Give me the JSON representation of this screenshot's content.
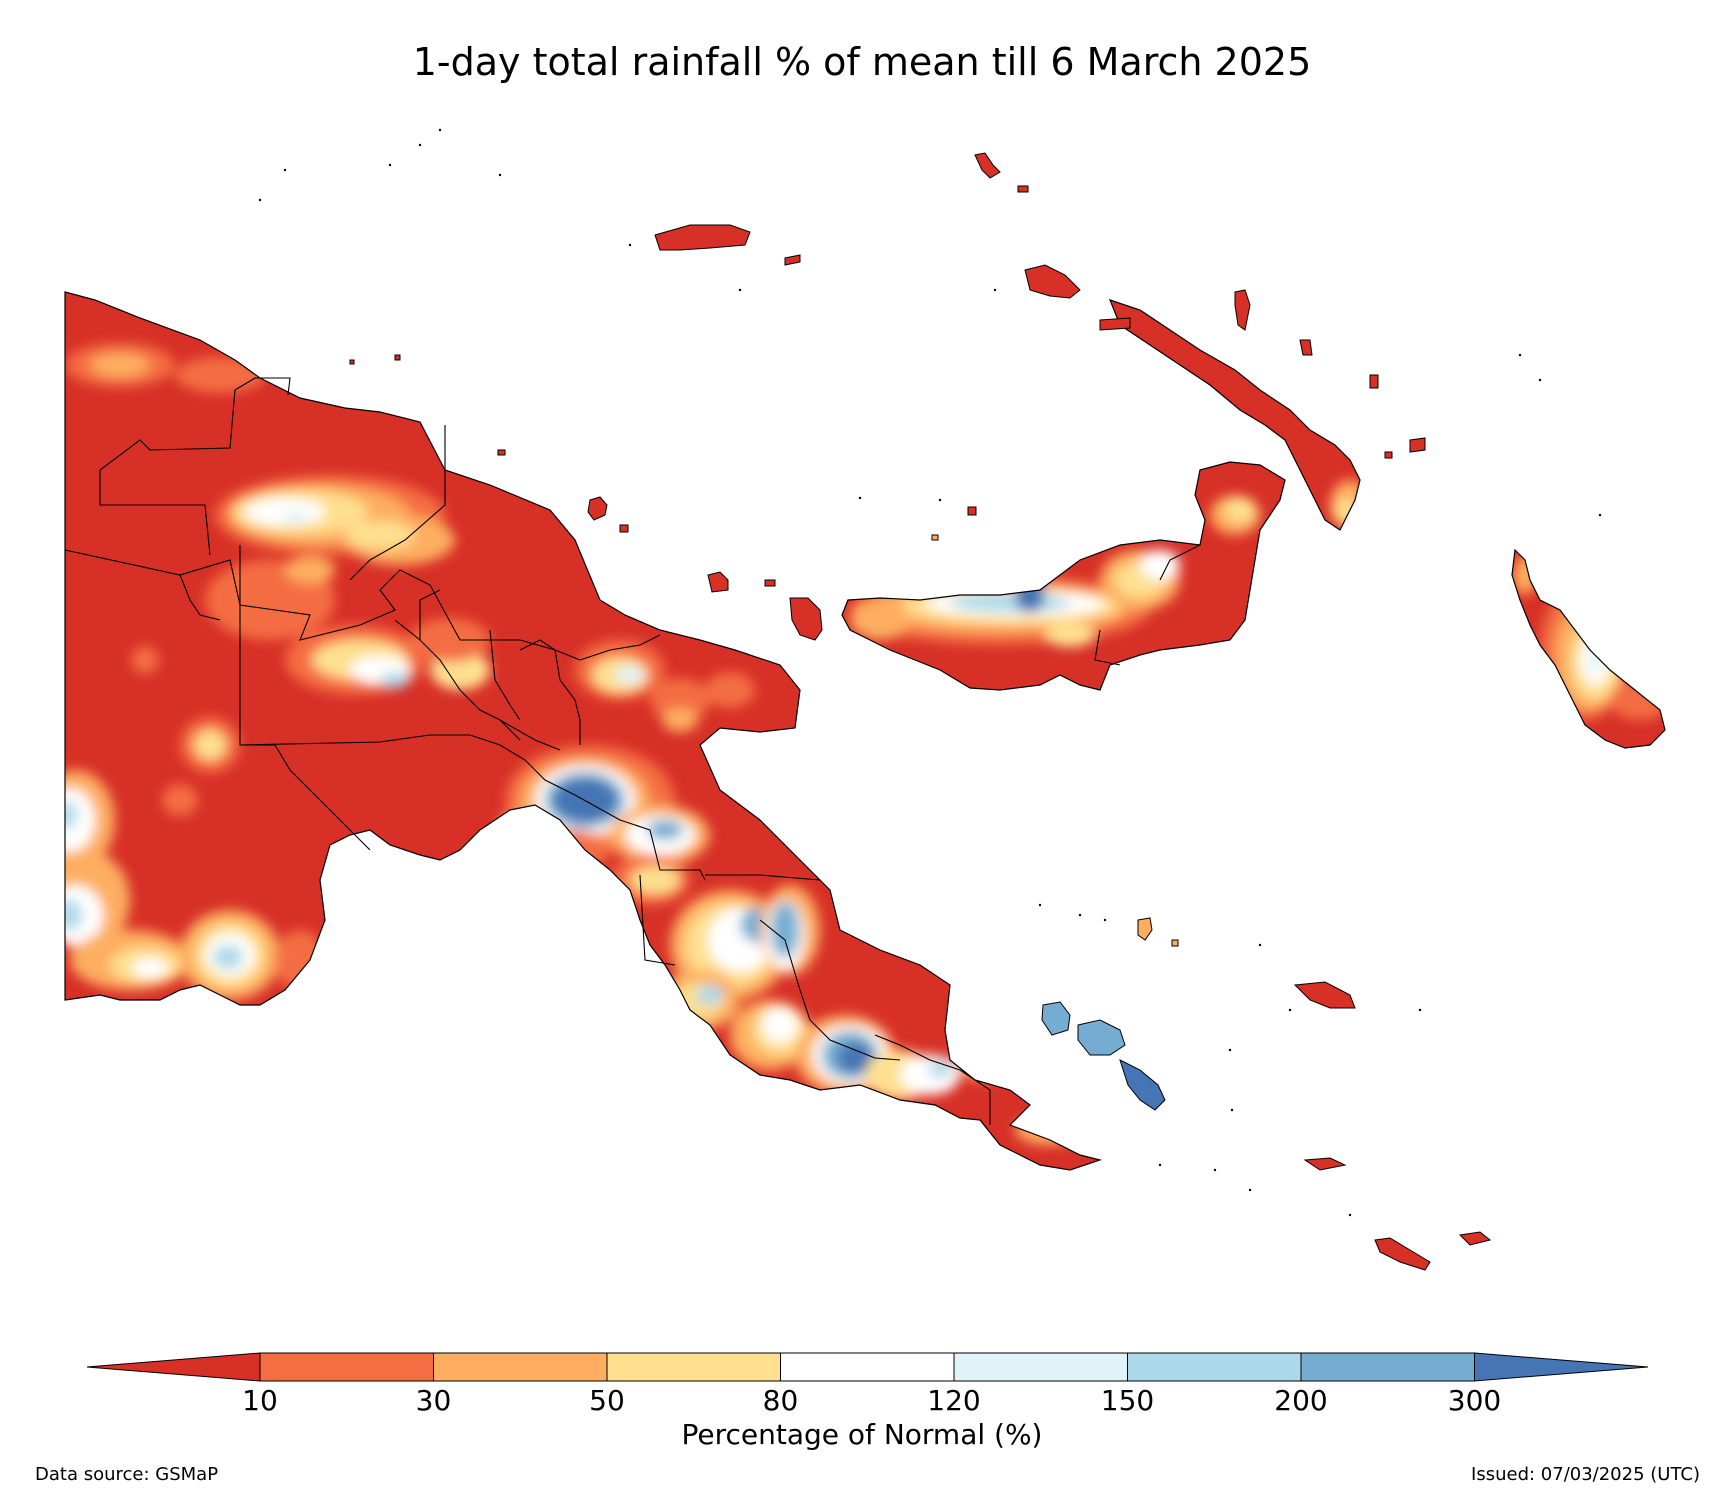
{
  "title": "1-day total rainfall % of mean till 6 March 2025",
  "colorbar": {
    "title": "Percentage of Normal (%)",
    "ticks": [
      "10",
      "30",
      "50",
      "80",
      "120",
      "150",
      "200",
      "300"
    ],
    "colors": {
      "below_10": "#d73027",
      "10_30": "#f46d43",
      "30_50": "#fdae61",
      "50_80": "#fee090",
      "80_120": "#ffffff",
      "120_150": "#e0f3f8",
      "150_200": "#abd9e9",
      "200_300": "#74add1",
      "above_300": "#4575b4"
    }
  },
  "footer": {
    "data_source": "Data source: GSMaP",
    "issued": "Issued: 07/03/2025 (UTC)"
  }
}
